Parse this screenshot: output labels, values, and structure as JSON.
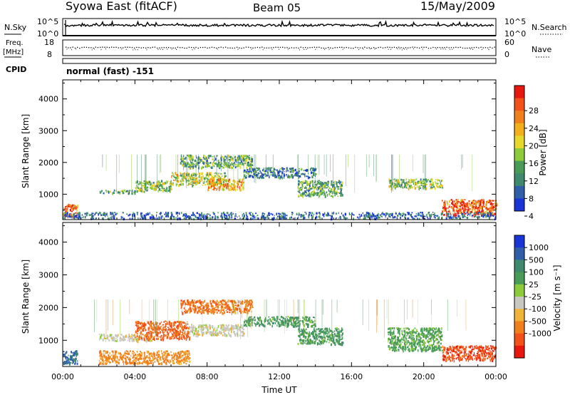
{
  "header": {
    "station": "Syowa East (fitACF)",
    "beam": "Beam 05",
    "date": "15/May/2009"
  },
  "top_panels": {
    "nsky_label": "N.Sky",
    "nsearch_label": "N.Search",
    "noise_ticks_left": [
      "10^5",
      "10^0"
    ],
    "noise_ticks_right": [
      "10^5",
      "10^0"
    ],
    "freq_label_line1": "Freq.",
    "freq_label_line2": "[MHz]",
    "freq_ticks": [
      "18",
      "8"
    ],
    "nave_label": "Nave",
    "nave_ticks": [
      "60",
      "0"
    ],
    "cpid_label": "CPID",
    "cpid_text": "normal (fast) -151"
  },
  "power_colorbar": {
    "label": "Power [dB]",
    "ticks": [
      "28",
      "24",
      "20",
      "16",
      "12",
      "8",
      "4"
    ],
    "colors": [
      "#e8170d",
      "#f2521a",
      "#f07f1c",
      "#f2b11a",
      "#e6d92b",
      "#8ccc3a",
      "#4a9b57",
      "#3f8a6e",
      "#2f5fa8",
      "#1a35d6"
    ]
  },
  "velocity_colorbar": {
    "label": "Velocity [m s⁻¹]",
    "ticks": [
      "1000",
      "500",
      "100",
      "25",
      "-25",
      "-100",
      "-500",
      "-1000"
    ],
    "colors": [
      "#1a35d6",
      "#2f5fa8",
      "#3f8a6e",
      "#4a9b57",
      "#8ccc3a",
      "#c8c8c0",
      "#f0b43a",
      "#f07f1c",
      "#f2521a",
      "#e8170d"
    ]
  },
  "chart_data": [
    {
      "type": "heatmap",
      "quantity": "Power",
      "ylabel": "Slant Range [km]",
      "xlabel": "",
      "ylim": [
        200,
        4600
      ],
      "xlim": [
        0,
        24
      ],
      "yticks": [
        1000,
        2000,
        3000,
        4000
      ],
      "xticks": [
        "00:00",
        "04:00",
        "08:00",
        "12:00",
        "16:00",
        "20:00",
        "00:00"
      ],
      "scatter_bands": [
        {
          "x": [
            2.0,
            4.0
          ],
          "y": [
            1050,
            1150
          ],
          "value": 10
        },
        {
          "x": [
            4.0,
            6.0
          ],
          "y": [
            1100,
            1450
          ],
          "value": 14
        },
        {
          "x": [
            6.0,
            9.0
          ],
          "y": [
            1300,
            1700
          ],
          "value": 16
        },
        {
          "x": [
            8.0,
            10.0
          ],
          "y": [
            1150,
            1500
          ],
          "value": 22
        },
        {
          "x": [
            6.5,
            10.5
          ],
          "y": [
            1850,
            2250
          ],
          "value": 12
        },
        {
          "x": [
            10.0,
            14.0
          ],
          "y": [
            1550,
            1850
          ],
          "value": 8
        },
        {
          "x": [
            13.0,
            15.5
          ],
          "y": [
            950,
            1450
          ],
          "value": 12
        },
        {
          "x": [
            18.0,
            21.0
          ],
          "y": [
            1200,
            1500
          ],
          "value": 14
        },
        {
          "x": [
            21.0,
            24.0
          ],
          "y": [
            350,
            850
          ],
          "value": 26
        },
        {
          "x": [
            0.0,
            0.8
          ],
          "y": [
            300,
            700
          ],
          "value": 26
        },
        {
          "x": [
            0.0,
            24.0
          ],
          "y": [
            250,
            450
          ],
          "value": 6
        }
      ]
    },
    {
      "type": "heatmap",
      "quantity": "Velocity",
      "ylabel": "Slant Range [km]",
      "xlabel": "Time UT",
      "ylim": [
        200,
        4600
      ],
      "xlim": [
        0,
        24
      ],
      "yticks": [
        1000,
        2000,
        3000,
        4000
      ],
      "xticks": [
        "00:00",
        "04:00",
        "08:00",
        "12:00",
        "16:00",
        "20:00",
        "00:00"
      ],
      "scatter_bands": [
        {
          "x": [
            2.0,
            5.0
          ],
          "y": [
            1000,
            1200
          ],
          "value": 0
        },
        {
          "x": [
            4.0,
            7.0
          ],
          "y": [
            1050,
            1600
          ],
          "value": -300
        },
        {
          "x": [
            7.0,
            10.0
          ],
          "y": [
            1150,
            1500
          ],
          "value": 0
        },
        {
          "x": [
            6.5,
            10.5
          ],
          "y": [
            1850,
            2250
          ],
          "value": -200
        },
        {
          "x": [
            10.0,
            14.0
          ],
          "y": [
            1450,
            1750
          ],
          "value": 200
        },
        {
          "x": [
            13.0,
            15.5
          ],
          "y": [
            900,
            1400
          ],
          "value": 200
        },
        {
          "x": [
            18.0,
            21.0
          ],
          "y": [
            700,
            1400
          ],
          "value": 150
        },
        {
          "x": [
            21.0,
            24.0
          ],
          "y": [
            400,
            850
          ],
          "value": -400
        },
        {
          "x": [
            2.0,
            7.0
          ],
          "y": [
            300,
            700
          ],
          "value": -150
        },
        {
          "x": [
            0.0,
            0.8
          ],
          "y": [
            300,
            700
          ],
          "value": 600
        }
      ]
    }
  ]
}
